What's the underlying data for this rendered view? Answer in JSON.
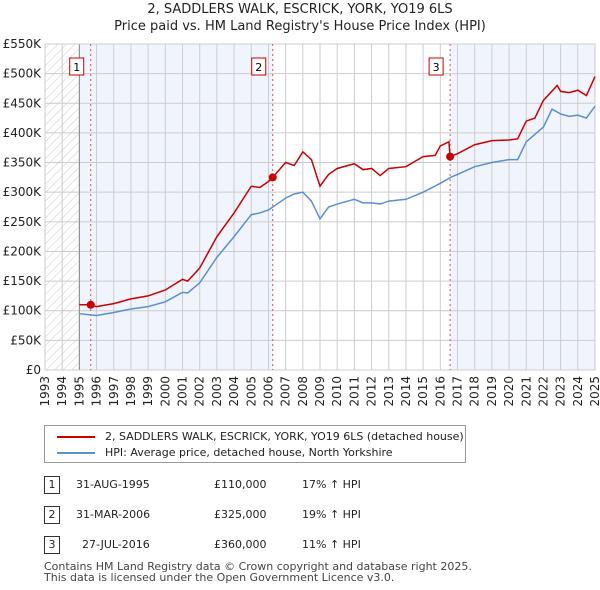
{
  "chart_data": {
    "type": "line",
    "title": "2, SADDLERS WALK, ESCRICK, YORK, YO19 6LS",
    "subtitle": "Price paid vs. HM Land Registry's House Price Index (HPI)",
    "xlim": [
      1993,
      2025
    ],
    "ylim": [
      0,
      550000
    ],
    "x_ticks": [
      "1993",
      "1994",
      "1995",
      "1996",
      "1997",
      "1998",
      "1999",
      "2000",
      "2001",
      "2002",
      "2003",
      "2004",
      "2005",
      "2006",
      "2007",
      "2008",
      "2009",
      "2010",
      "2011",
      "2012",
      "2013",
      "2014",
      "2015",
      "2016",
      "2017",
      "2018",
      "2019",
      "2020",
      "2021",
      "2022",
      "2023",
      "2024",
      "2025"
    ],
    "y_ticks": [
      {
        "v": 0,
        "l": "£0"
      },
      {
        "v": 50000,
        "l": "£50K"
      },
      {
        "v": 100000,
        "l": "£100K"
      },
      {
        "v": 150000,
        "l": "£150K"
      },
      {
        "v": 200000,
        "l": "£200K"
      },
      {
        "v": 250000,
        "l": "£250K"
      },
      {
        "v": 300000,
        "l": "£300K"
      },
      {
        "v": 350000,
        "l": "£350K"
      },
      {
        "v": 400000,
        "l": "£400K"
      },
      {
        "v": 450000,
        "l": "£450K"
      },
      {
        "v": 500000,
        "l": "£500K"
      },
      {
        "v": 550000,
        "l": "£550K"
      }
    ],
    "grid": true,
    "series": [
      {
        "name": "2, SADDLERS WALK, ESCRICK, YORK, YO19 6LS (detached house)",
        "color": "#cc0000",
        "x": [
          1995,
          1995.6,
          1996,
          1997,
          1998,
          1999,
          2000,
          2001,
          2001.3,
          2002,
          2003,
          2004,
          2005,
          2005.5,
          2006,
          2006.25,
          2007,
          2007.5,
          2008,
          2008.5,
          2009,
          2009.5,
          2010,
          2011,
          2011.5,
          2012,
          2012.5,
          2013,
          2014,
          2015,
          2015.7,
          2016,
          2016.5,
          2016.57,
          2017,
          2018,
          2019,
          2020,
          2020.5,
          2021,
          2021.5,
          2022,
          2022.8,
          2023,
          2023.5,
          2024,
          2024.5,
          2025
        ],
        "y": [
          110000,
          110000,
          107000,
          112000,
          120000,
          125000,
          135000,
          153000,
          150000,
          172000,
          225000,
          265000,
          310000,
          308000,
          318000,
          325000,
          350000,
          345000,
          368000,
          355000,
          310000,
          330000,
          340000,
          348000,
          338000,
          340000,
          328000,
          340000,
          343000,
          360000,
          362000,
          378000,
          385000,
          360000,
          365000,
          380000,
          387000,
          388000,
          390000,
          420000,
          425000,
          455000,
          480000,
          470000,
          468000,
          472000,
          463000,
          495000
        ]
      },
      {
        "name": "HPI: Average price, detached house, North Yorkshire",
        "color": "#5b8fd0",
        "x": [
          1995,
          1996,
          1997,
          1998,
          1999,
          2000,
          2001,
          2001.3,
          2002,
          2003,
          2004,
          2005,
          2005.5,
          2006,
          2007,
          2007.5,
          2008,
          2008.5,
          2009,
          2009.5,
          2010,
          2011,
          2011.5,
          2012,
          2012.5,
          2013,
          2014,
          2015,
          2016,
          2016.6,
          2017,
          2018,
          2019,
          2020,
          2020.5,
          2021,
          2022,
          2022.5,
          2023,
          2023.5,
          2024,
          2024.5,
          2025
        ],
        "y": [
          95000,
          92000,
          97000,
          103000,
          107000,
          115000,
          131000,
          130000,
          147000,
          190000,
          225000,
          262000,
          265000,
          270000,
          290000,
          297000,
          300000,
          285000,
          255000,
          275000,
          280000,
          288000,
          282000,
          282000,
          280000,
          285000,
          288000,
          300000,
          315000,
          325000,
          330000,
          343000,
          350000,
          355000,
          355000,
          385000,
          410000,
          440000,
          432000,
          428000,
          430000,
          425000,
          445000
        ]
      }
    ],
    "sales": [
      {
        "label": "1",
        "x": 1995.66,
        "y": 110000
      },
      {
        "label": "2",
        "x": 2006.25,
        "y": 325000
      },
      {
        "label": "3",
        "x": 2016.57,
        "y": 360000
      }
    ],
    "legend_position": "below"
  },
  "table": [
    {
      "num": "1",
      "date": "31-AUG-1995",
      "price": "£110,000",
      "hpi": "17% ↑ HPI"
    },
    {
      "num": "2",
      "date": "31-MAR-2006",
      "price": "£325,000",
      "hpi": "19% ↑ HPI"
    },
    {
      "num": "3",
      "date": "27-JUL-2016",
      "price": "£360,000",
      "hpi": "11% ↑ HPI"
    }
  ],
  "footer": [
    "Contains HM Land Registry data © Crown copyright and database right 2025.",
    "This data is licensed under the Open Government Licence v3.0."
  ]
}
